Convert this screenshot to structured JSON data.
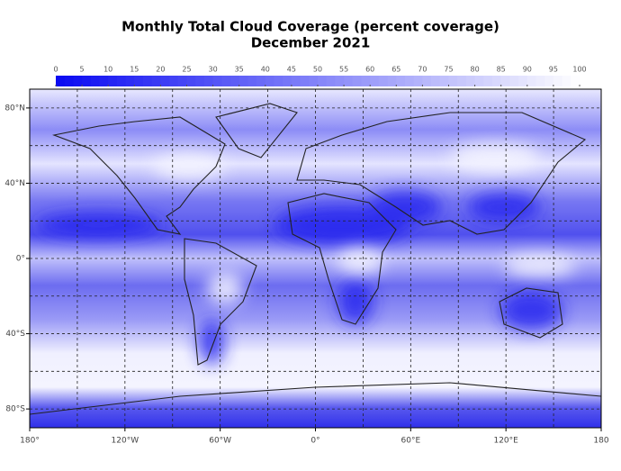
{
  "title": "Monthly Total Cloud Coverage (percent coverage)",
  "subtitle": "December 2021",
  "colorbar": {
    "lim": [
      0,
      100
    ],
    "colors": [
      "#0a0af2",
      "#ffffff"
    ],
    "ticks": [
      0,
      5,
      10,
      15,
      20,
      25,
      30,
      35,
      40,
      45,
      50,
      55,
      60,
      65,
      70,
      75,
      80,
      85,
      90,
      95,
      100
    ]
  },
  "map": {
    "xlim": [
      -180,
      180
    ],
    "ylim": [
      -90,
      90
    ],
    "grid": true,
    "xticks": [
      {
        "value": -180,
        "label": "180°"
      },
      {
        "value": -120,
        "label": "120°W"
      },
      {
        "value": -60,
        "label": "60°W"
      },
      {
        "value": 0,
        "label": "0°"
      },
      {
        "value": 60,
        "label": "60°E"
      },
      {
        "value": 120,
        "label": "120°E"
      },
      {
        "value": 180,
        "label": "180"
      }
    ],
    "yticks": [
      {
        "value": 80,
        "label": "80°N"
      },
      {
        "value": 40,
        "label": "40°N"
      },
      {
        "value": 0,
        "label": "0°"
      },
      {
        "value": -40,
        "label": "40°S"
      },
      {
        "value": -80,
        "label": "80°S"
      }
    ],
    "xgrid": [
      -150,
      -120,
      -90,
      -60,
      -30,
      0,
      30,
      60,
      90,
      120,
      150
    ],
    "ygrid": [
      -80,
      -60,
      -40,
      -20,
      0,
      20,
      40,
      60,
      80
    ]
  }
}
